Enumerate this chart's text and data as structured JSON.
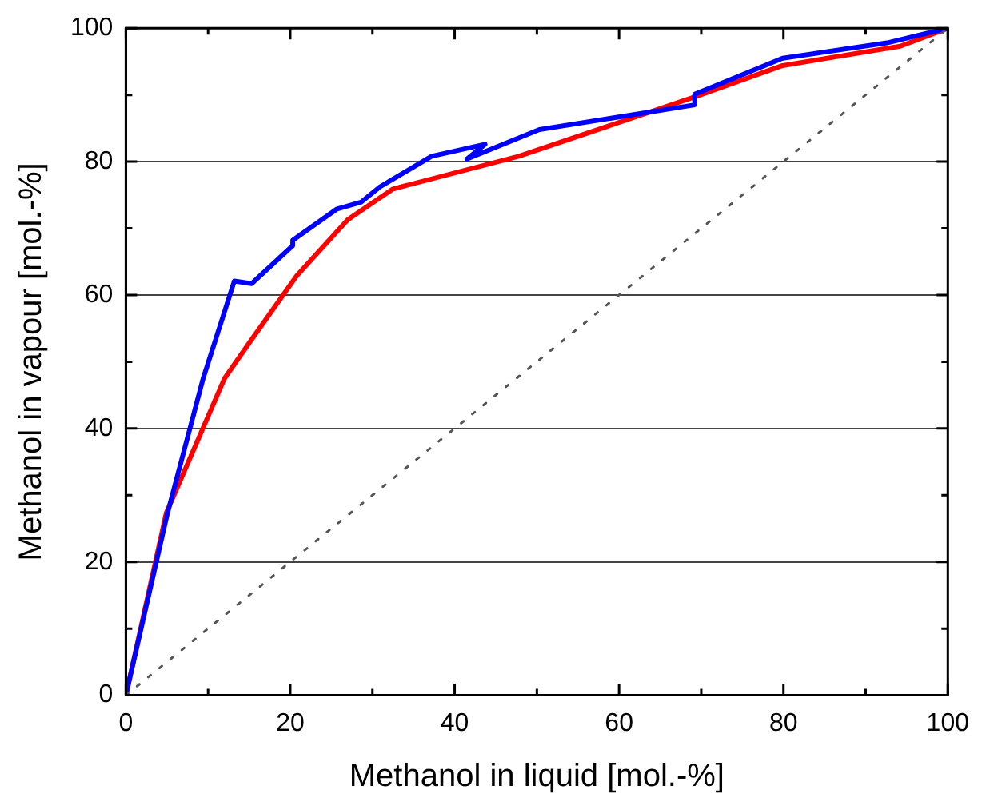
{
  "chart_data": {
    "type": "line",
    "xlabel": "Methanol in liquid [mol.-%]",
    "ylabel": "Methanol in vapour [mol.-%]",
    "xlim": [
      0,
      100
    ],
    "ylim": [
      0,
      100
    ],
    "xticks": [
      0,
      {
        "value": 10,
        "label": null
      },
      20,
      {
        "value": 30,
        "label": null
      },
      40,
      {
        "value": 50,
        "label": null
      },
      60,
      {
        "value": 70,
        "label": null
      },
      80,
      {
        "value": 90,
        "label": null
      },
      100
    ],
    "yticks": [
      0,
      {
        "value": 10,
        "label": null
      },
      20,
      {
        "value": 30,
        "label": null
      },
      40,
      {
        "value": 50,
        "label": null
      },
      60,
      {
        "value": 70,
        "label": null
      },
      80,
      {
        "value": 90,
        "label": null
      },
      100
    ],
    "grid": "y",
    "legend": false,
    "marker": "none",
    "series": [
      {
        "color": "#555555",
        "line_style": "dotted",
        "x": [
          0,
          100
        ],
        "values": [
          0,
          100
        ]
      },
      {
        "color": "#0000ff",
        "line_style": "solid",
        "x": [
          0,
          5,
          9.4,
          13.2,
          15.3,
          20.3,
          20.3,
          25.7,
          28.6,
          30.9,
          37.2,
          43.7,
          41.5,
          50.3,
          69.2,
          69.2,
          79.9,
          92.6,
          100
        ],
        "values": [
          0,
          27,
          47.5,
          62.1,
          61.7,
          67.4,
          68.2,
          72.9,
          73.9,
          76.2,
          80.8,
          82.6,
          80.4,
          84.8,
          88.5,
          90.1,
          95.5,
          97.8,
          100
        ]
      },
      {
        "color": "#ff0000",
        "line_style": "solid",
        "x": [
          0,
          4.9,
          12,
          15,
          20.8,
          27,
          32.5,
          47.8,
          69.2,
          79.9,
          94.2,
          100
        ],
        "values": [
          0,
          27.3,
          47.5,
          52.8,
          62.9,
          71.3,
          75.9,
          80.8,
          89.7,
          94.4,
          97.3,
          100
        ]
      }
    ]
  }
}
